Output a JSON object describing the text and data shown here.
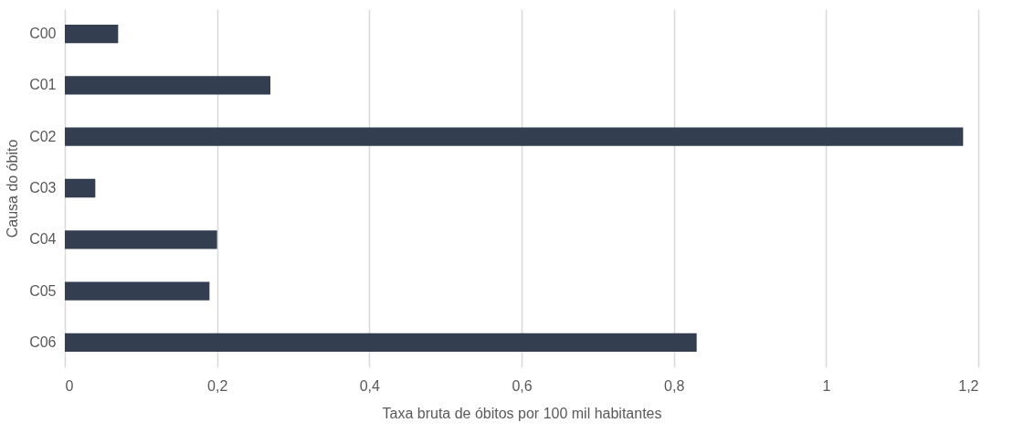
{
  "chart_data": {
    "type": "bar",
    "orientation": "horizontal",
    "xlabel": "Taxa bruta de óbitos por 100 mil habitantes",
    "ylabel": "Causa do óbito",
    "categories": [
      "C00",
      "C01",
      "C02",
      "C03",
      "C04",
      "C05",
      "C06"
    ],
    "values": [
      0.07,
      0.27,
      1.18,
      0.04,
      0.2,
      0.19,
      0.83
    ],
    "color": "#333f50",
    "xlim": [
      0,
      1.2
    ],
    "xticks": [
      0,
      {
        "value": 0.2,
        "label": "0,2"
      },
      {
        "value": 0.4,
        "label": "0,4"
      },
      {
        "value": 0.6,
        "label": "0,6"
      },
      {
        "value": 0.8,
        "label": "0,8"
      },
      1,
      {
        "value": 1.2,
        "label": "1,2"
      }
    ],
    "grid": "x"
  }
}
